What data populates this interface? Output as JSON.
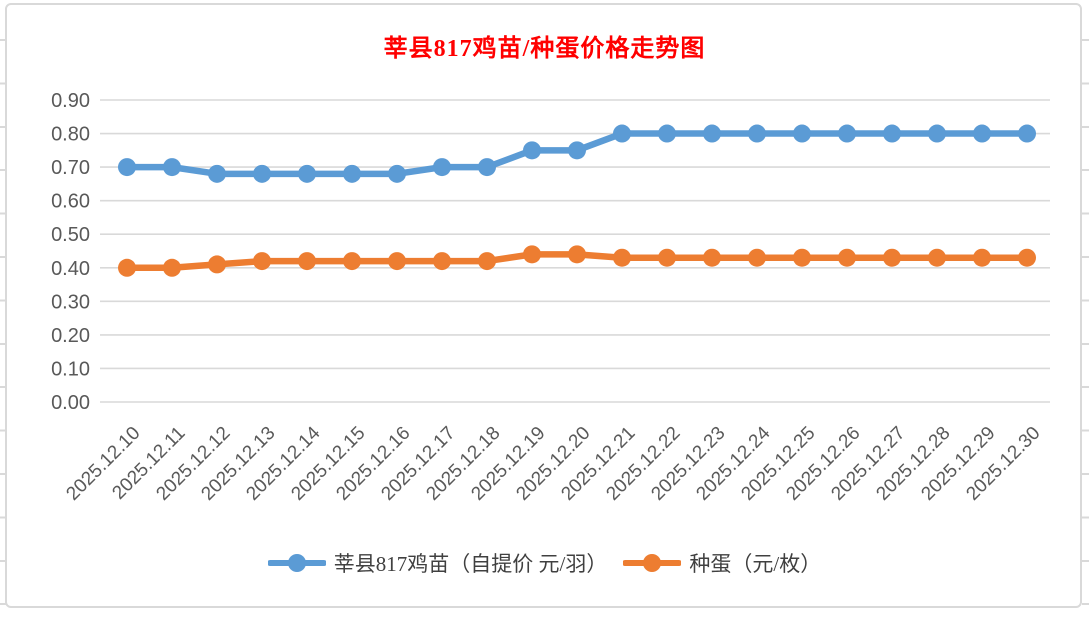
{
  "chart_data": {
    "type": "line",
    "title": "莘县817鸡苗/种蛋价格走势图",
    "title_color": "#FF0000",
    "categories": [
      "2025.12.10",
      "2025.12.11",
      "2025.12.12",
      "2025.12.13",
      "2025.12.14",
      "2025.12.15",
      "2025.12.16",
      "2025.12.17",
      "2025.12.18",
      "2025.12.19",
      "2025.12.20",
      "2025.12.21",
      "2025.12.22",
      "2025.12.23",
      "2025.12.24",
      "2025.12.25",
      "2025.12.26",
      "2025.12.27",
      "2025.12.28",
      "2025.12.29",
      "2025.12.30"
    ],
    "series": [
      {
        "name": "莘县817鸡苗（自提价 元/羽）",
        "color": "#5B9BD5",
        "values": [
          0.7,
          0.7,
          0.68,
          0.68,
          0.68,
          0.68,
          0.68,
          0.7,
          0.7,
          0.75,
          0.75,
          0.8,
          0.8,
          0.8,
          0.8,
          0.8,
          0.8,
          0.8,
          0.8,
          0.8,
          0.8
        ]
      },
      {
        "name": "种蛋（元/枚）",
        "color": "#ED7D31",
        "values": [
          0.4,
          0.4,
          0.41,
          0.42,
          0.42,
          0.42,
          0.42,
          0.42,
          0.42,
          0.44,
          0.44,
          0.43,
          0.43,
          0.43,
          0.43,
          0.43,
          0.43,
          0.43,
          0.43,
          0.43,
          0.43
        ]
      }
    ],
    "xlabel": "",
    "ylabel": "",
    "ylim": [
      0.0,
      0.9
    ],
    "ytick_step": 0.1,
    "ytick_labels": [
      "0.00",
      "0.10",
      "0.20",
      "0.30",
      "0.40",
      "0.50",
      "0.60",
      "0.70",
      "0.80",
      "0.90"
    ],
    "grid": true,
    "legend_position": "bottom"
  },
  "style": {
    "grid_color": "#D9D9D9",
    "axis_text_color": "#595959",
    "frame_border_color": "#D9D9D9",
    "background": "#FFFFFF"
  }
}
